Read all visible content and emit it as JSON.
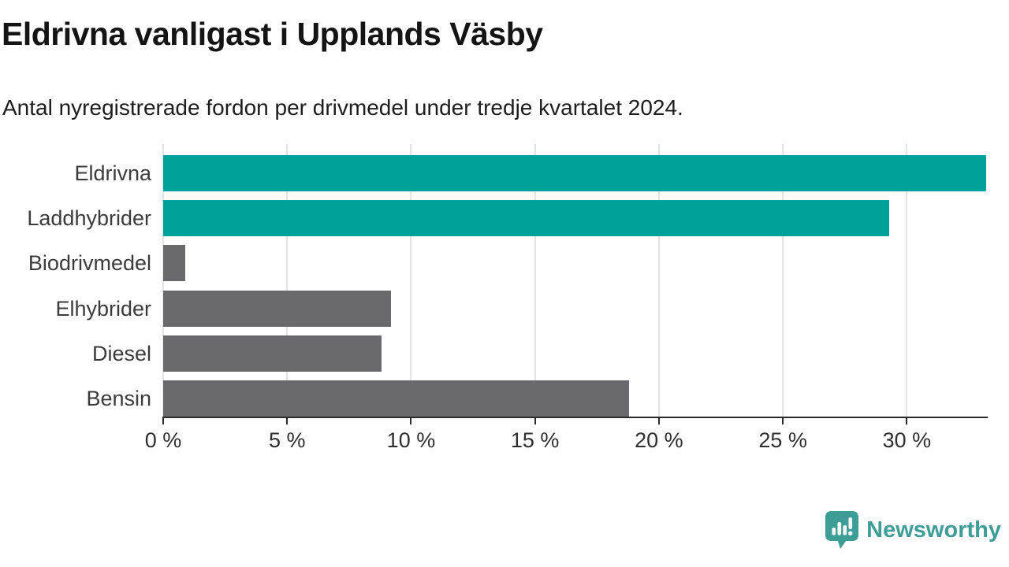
{
  "header": {
    "title": "Eldrivna vanligast i Upplands Väsby",
    "subtitle": "Antal nyregistrerade fordon per drivmedel under tredje kvartalet 2024."
  },
  "chart_data": {
    "type": "bar",
    "orientation": "horizontal",
    "title": "Eldrivna vanligast i Upplands Väsby",
    "subtitle": "Antal nyregistrerade fordon per drivmedel under tredje kvartalet 2024.",
    "categories": [
      "Eldrivna",
      "Laddhybrider",
      "Biodrivmedel",
      "Elhybrider",
      "Diesel",
      "Bensin"
    ],
    "values": [
      33.2,
      29.3,
      0.9,
      9.2,
      8.8,
      18.8
    ],
    "unit": "%",
    "xlim": [
      0,
      33.2
    ],
    "xticks": [
      0,
      5,
      10,
      15,
      20,
      25,
      30
    ],
    "xtick_labels": [
      "0 %",
      "5 %",
      "10 %",
      "15 %",
      "20 %",
      "25 %",
      "30 %"
    ],
    "grid": true,
    "legend": "none",
    "bar_colors": [
      "#00a19a",
      "#00a19a",
      "#6a6a6e",
      "#6a6a6e",
      "#6a6a6e",
      "#6a6a6e"
    ],
    "highlight_color": "#00a19a",
    "default_color": "#6a6a6e",
    "gridline_color": "#e3e3e3",
    "axis_color": "#2b2b2b"
  },
  "footer": {
    "brand": "Newsworthy",
    "logo_icon": "newsworthy-logo-icon",
    "brand_color": "#3f9d97"
  }
}
